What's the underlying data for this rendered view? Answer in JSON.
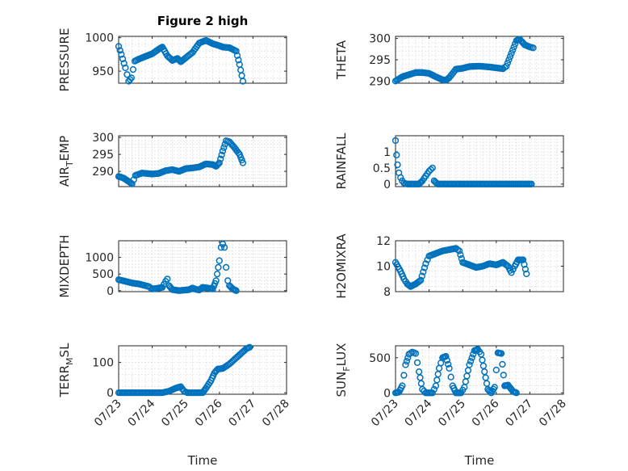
{
  "figure_title": "Figure 2 high",
  "colors": {
    "marker": "#0072BD",
    "axis": "#262626",
    "grid": "#d9d9d9"
  },
  "chart_data": [
    {
      "type": "scatter",
      "marker": "circle-open",
      "grid": true,
      "ylabel": "PRESSURE",
      "xlabel": "",
      "xlim": [
        0,
        5
      ],
      "ylim": [
        932,
        1002
      ],
      "yticks": [
        950,
        1000
      ],
      "xtick_labels": [],
      "anchors": [
        [
          0.0,
          987
        ],
        [
          0.08,
          975
        ],
        [
          0.2,
          955
        ],
        [
          0.3,
          935
        ],
        [
          0.38,
          940
        ],
        [
          0.48,
          965
        ],
        [
          0.6,
          968
        ],
        [
          0.8,
          972
        ],
        [
          1.0,
          976
        ],
        [
          1.2,
          983
        ],
        [
          1.3,
          986
        ],
        [
          1.45,
          973
        ],
        [
          1.6,
          966
        ],
        [
          1.75,
          969
        ],
        [
          1.85,
          964
        ],
        [
          2.0,
          970
        ],
        [
          2.2,
          978
        ],
        [
          2.4,
          992
        ],
        [
          2.6,
          996
        ],
        [
          2.8,
          991
        ],
        [
          3.0,
          988
        ],
        [
          3.1,
          986
        ],
        [
          3.3,
          985
        ],
        [
          3.5,
          980
        ],
        [
          3.6,
          960
        ],
        [
          3.7,
          935
        ]
      ]
    },
    {
      "type": "scatter",
      "marker": "circle-open",
      "grid": true,
      "ylabel": "THETA",
      "xlabel": "",
      "xlim": [
        0,
        5
      ],
      "ylim": [
        289.5,
        300.5
      ],
      "yticks": [
        290,
        295,
        300
      ],
      "xtick_labels": [],
      "anchors": [
        [
          0.0,
          290
        ],
        [
          0.2,
          291
        ],
        [
          0.4,
          291.5
        ],
        [
          0.6,
          292
        ],
        [
          0.8,
          292
        ],
        [
          1.0,
          291.8
        ],
        [
          1.2,
          291
        ],
        [
          1.4,
          290.3
        ],
        [
          1.5,
          290.2
        ],
        [
          1.6,
          290.8
        ],
        [
          1.8,
          292.8
        ],
        [
          2.0,
          293
        ],
        [
          2.2,
          293.4
        ],
        [
          2.5,
          293.5
        ],
        [
          2.8,
          293.3
        ],
        [
          3.0,
          293.1
        ],
        [
          3.2,
          292.9
        ],
        [
          3.3,
          293.5
        ],
        [
          3.45,
          296.5
        ],
        [
          3.6,
          299.5
        ],
        [
          3.7,
          299.8
        ],
        [
          3.85,
          298.5
        ],
        [
          4.0,
          298
        ],
        [
          4.1,
          297.8
        ]
      ]
    },
    {
      "type": "scatter",
      "marker": "circle-open",
      "grid": true,
      "ylabel": "AIR_TEMP",
      "xlabel": "",
      "xlim": [
        0,
        5
      ],
      "ylim": [
        285.5,
        300.5
      ],
      "yticks": [
        290,
        295,
        300
      ],
      "xtick_labels": [],
      "anchors": [
        [
          0.0,
          288.5
        ],
        [
          0.15,
          288
        ],
        [
          0.3,
          287
        ],
        [
          0.4,
          286.3
        ],
        [
          0.5,
          288.8
        ],
        [
          0.7,
          289.5
        ],
        [
          1.0,
          289.2
        ],
        [
          1.2,
          289.4
        ],
        [
          1.4,
          290.2
        ],
        [
          1.6,
          290.5
        ],
        [
          1.8,
          290
        ],
        [
          2.0,
          290.8
        ],
        [
          2.2,
          291
        ],
        [
          2.4,
          291.3
        ],
        [
          2.6,
          292.2
        ],
        [
          2.8,
          292
        ],
        [
          2.9,
          291.5
        ],
        [
          3.0,
          292.5
        ],
        [
          3.1,
          296
        ],
        [
          3.2,
          299
        ],
        [
          3.3,
          298.7
        ],
        [
          3.45,
          297
        ],
        [
          3.6,
          295
        ],
        [
          3.7,
          292.5
        ]
      ]
    },
    {
      "type": "scatter",
      "marker": "circle-open",
      "grid": true,
      "ylabel": "RAINFALL",
      "xlabel": "",
      "xlim": [
        0,
        5
      ],
      "ylim": [
        -0.08,
        1.5
      ],
      "yticks": [
        0,
        0.5,
        1
      ],
      "tick_text": [
        "0",
        "0.5",
        "1"
      ],
      "xtick_labels": [],
      "anchors": [
        [
          0.0,
          1.35
        ],
        [
          0.03,
          0.9
        ],
        [
          0.06,
          0.6
        ],
        [
          0.1,
          0.35
        ],
        [
          0.15,
          0.2
        ],
        [
          0.2,
          0.1
        ],
        [
          0.25,
          0.03
        ],
        [
          0.35,
          0
        ],
        [
          0.7,
          0
        ],
        [
          0.8,
          0.1
        ],
        [
          0.9,
          0.25
        ],
        [
          1.0,
          0.4
        ],
        [
          1.05,
          0.45
        ],
        [
          1.1,
          0.5
        ],
        [
          1.15,
          0.1
        ],
        [
          1.25,
          0
        ],
        [
          4.05,
          0
        ]
      ]
    },
    {
      "type": "scatter",
      "marker": "circle-open",
      "grid": true,
      "ylabel": "MIXDEPTH",
      "xlabel": "",
      "xlim": [
        0,
        5
      ],
      "ylim": [
        -30,
        1500
      ],
      "yticks": [
        0,
        500,
        1000
      ],
      "xtick_labels": [],
      "anchors": [
        [
          0.0,
          330
        ],
        [
          0.2,
          280
        ],
        [
          0.4,
          230
        ],
        [
          0.6,
          200
        ],
        [
          0.8,
          150
        ],
        [
          0.9,
          120
        ],
        [
          1.0,
          50
        ],
        [
          1.2,
          80
        ],
        [
          1.3,
          100
        ],
        [
          1.4,
          280
        ],
        [
          1.45,
          350
        ],
        [
          1.5,
          150
        ],
        [
          1.6,
          30
        ],
        [
          1.8,
          0
        ],
        [
          2.0,
          20
        ],
        [
          2.1,
          30
        ],
        [
          2.2,
          80
        ],
        [
          2.3,
          40
        ],
        [
          2.4,
          20
        ],
        [
          2.5,
          100
        ],
        [
          2.65,
          80
        ],
        [
          2.8,
          50
        ],
        [
          2.9,
          300
        ],
        [
          3.0,
          900
        ],
        [
          3.05,
          1300
        ],
        [
          3.1,
          1400
        ],
        [
          3.15,
          1300
        ],
        [
          3.2,
          700
        ],
        [
          3.25,
          300
        ],
        [
          3.3,
          150
        ],
        [
          3.4,
          50
        ],
        [
          3.5,
          0
        ]
      ]
    },
    {
      "type": "scatter",
      "marker": "circle-open",
      "grid": true,
      "ylabel": "H2OMIXRA",
      "xlabel": "",
      "xlim": [
        0,
        5
      ],
      "ylim": [
        8,
        12
      ],
      "yticks": [
        8,
        10,
        12
      ],
      "xtick_labels": [],
      "anchors": [
        [
          0.0,
          10.3
        ],
        [
          0.15,
          9.6
        ],
        [
          0.25,
          9
        ],
        [
          0.35,
          8.6
        ],
        [
          0.45,
          8.4
        ],
        [
          0.6,
          8.6
        ],
        [
          0.75,
          8.9
        ],
        [
          0.9,
          10.2
        ],
        [
          1.0,
          10.8
        ],
        [
          1.2,
          11
        ],
        [
          1.4,
          11.2
        ],
        [
          1.6,
          11.3
        ],
        [
          1.8,
          11.4
        ],
        [
          1.9,
          11.2
        ],
        [
          2.0,
          10.3
        ],
        [
          2.2,
          10.1
        ],
        [
          2.4,
          9.9
        ],
        [
          2.6,
          10
        ],
        [
          2.8,
          10.2
        ],
        [
          3.0,
          10.1
        ],
        [
          3.2,
          10.3
        ],
        [
          3.35,
          10
        ],
        [
          3.45,
          9.5
        ],
        [
          3.55,
          10
        ],
        [
          3.65,
          10.5
        ],
        [
          3.8,
          10.5
        ],
        [
          3.9,
          9.4
        ]
      ]
    },
    {
      "type": "scatter",
      "marker": "circle-open",
      "grid": true,
      "ylabel": "TERR_MSL",
      "xlabel": "Time",
      "xlim": [
        0,
        5
      ],
      "ylim": [
        -5,
        155
      ],
      "yticks": [
        0,
        100
      ],
      "xtick_labels": [
        "07/23",
        "07/24",
        "07/25",
        "07/26",
        "07/27",
        "07/28"
      ],
      "anchors": [
        [
          0.0,
          0
        ],
        [
          1.3,
          0
        ],
        [
          1.5,
          5
        ],
        [
          1.7,
          15
        ],
        [
          1.85,
          20
        ],
        [
          1.95,
          5
        ],
        [
          2.05,
          0
        ],
        [
          2.5,
          0
        ],
        [
          2.6,
          15
        ],
        [
          2.75,
          40
        ],
        [
          2.85,
          65
        ],
        [
          2.95,
          78
        ],
        [
          3.1,
          80
        ],
        [
          3.3,
          95
        ],
        [
          3.5,
          115
        ],
        [
          3.65,
          130
        ],
        [
          3.8,
          145
        ],
        [
          3.9,
          150
        ]
      ]
    },
    {
      "type": "scatter",
      "marker": "circle-open",
      "grid": true,
      "ylabel": "SUN_FLUX",
      "xlabel": "Time",
      "xlim": [
        0,
        5
      ],
      "ylim": [
        -20,
        670
      ],
      "yticks": [
        0,
        500
      ],
      "xtick_labels": [
        "07/23",
        "07/24",
        "07/25",
        "07/26",
        "07/27",
        "07/28"
      ],
      "anchors": [
        [
          0.0,
          0
        ],
        [
          0.1,
          10
        ],
        [
          0.2,
          100
        ],
        [
          0.3,
          400
        ],
        [
          0.4,
          550
        ],
        [
          0.5,
          580
        ],
        [
          0.6,
          560
        ],
        [
          0.7,
          300
        ],
        [
          0.8,
          50
        ],
        [
          0.9,
          0
        ],
        [
          1.1,
          0
        ],
        [
          1.2,
          100
        ],
        [
          1.3,
          350
        ],
        [
          1.4,
          500
        ],
        [
          1.5,
          520
        ],
        [
          1.6,
          350
        ],
        [
          1.7,
          100
        ],
        [
          1.8,
          0
        ],
        [
          1.95,
          0
        ],
        [
          2.05,
          80
        ],
        [
          2.2,
          400
        ],
        [
          2.35,
          600
        ],
        [
          2.45,
          620
        ],
        [
          2.55,
          550
        ],
        [
          2.65,
          300
        ],
        [
          2.75,
          50
        ],
        [
          2.85,
          0
        ],
        [
          2.95,
          80
        ],
        [
          3.05,
          570
        ],
        [
          3.15,
          560
        ],
        [
          3.25,
          100
        ],
        [
          3.35,
          110
        ],
        [
          3.5,
          20
        ],
        [
          3.6,
          0
        ]
      ]
    }
  ]
}
